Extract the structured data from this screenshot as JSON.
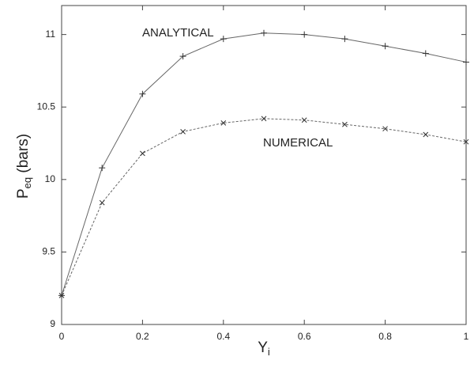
{
  "chart_data": {
    "type": "line",
    "x_label": {
      "main": "Y",
      "sub": "i"
    },
    "y_label": {
      "main": "P",
      "sub": "eq",
      "rest": " (bars)"
    },
    "x": [
      0,
      0.1,
      0.2,
      0.3,
      0.4,
      0.5,
      0.6,
      0.7,
      0.8,
      0.9,
      1
    ],
    "series": [
      {
        "name": "ANALYTICAL",
        "color": "#666666",
        "marker": "+",
        "dash": false,
        "values": [
          9.2,
          10.08,
          10.59,
          10.85,
          10.97,
          11.01,
          11.0,
          10.97,
          10.92,
          10.87,
          10.81
        ]
      },
      {
        "name": "NUMERICAL",
        "color": "#666666",
        "marker": "x",
        "dash": true,
        "values": [
          9.2,
          9.84,
          10.18,
          10.33,
          10.39,
          10.42,
          10.41,
          10.38,
          10.35,
          10.31,
          10.26
        ]
      }
    ],
    "xlim": [
      0,
      1
    ],
    "xticks": [
      0,
      0.2,
      0.4,
      0.6,
      0.8,
      1
    ],
    "ylim": [
      9,
      11.2
    ],
    "yticks": [
      9,
      9.5,
      10,
      10.5,
      11
    ],
    "grid": false
  }
}
